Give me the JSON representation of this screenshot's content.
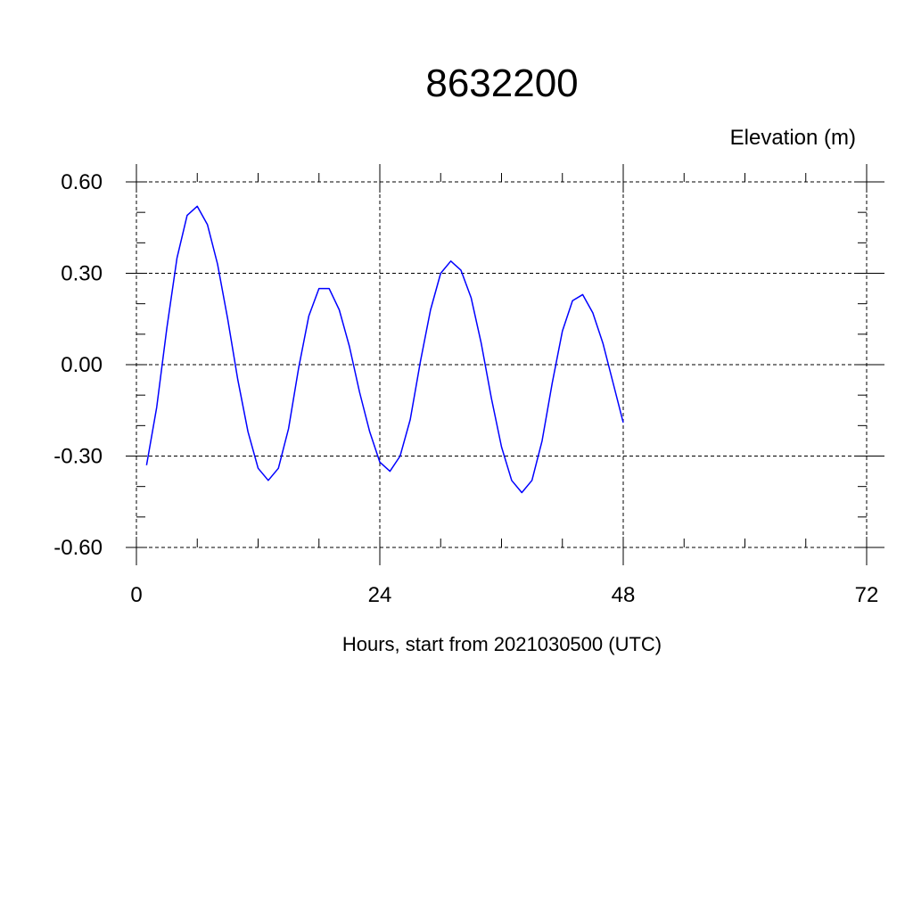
{
  "chart_data": {
    "type": "line",
    "title": "8632200",
    "ylabel": "Elevation (m)",
    "xlabel": "Hours, start from 2021030500 (UTC)",
    "xlim": [
      0,
      72
    ],
    "ylim": [
      -0.6,
      0.6
    ],
    "x_ticks": [
      0,
      24,
      48,
      72
    ],
    "x_tick_labels": [
      "0",
      "24",
      "48",
      "72"
    ],
    "y_ticks": [
      0.6,
      0.3,
      0.0,
      -0.3,
      -0.6
    ],
    "y_tick_labels": [
      "0.60",
      "0.30",
      "0.00",
      "-0.30",
      "-0.60"
    ],
    "grid": true,
    "series": [
      {
        "color": "#0000ff",
        "x": [
          1,
          2,
          3,
          4,
          5,
          6,
          7,
          8,
          9,
          10,
          11,
          12,
          13,
          14,
          15,
          16,
          17,
          18,
          19,
          20,
          21,
          22,
          23,
          24,
          25,
          26,
          27,
          28,
          29,
          30,
          31,
          32,
          33,
          34,
          35,
          36,
          37,
          38,
          39,
          40,
          41,
          42,
          43,
          44,
          45,
          46,
          47,
          48
        ],
        "y": [
          -0.33,
          -0.14,
          0.12,
          0.35,
          0.49,
          0.52,
          0.46,
          0.33,
          0.15,
          -0.05,
          -0.22,
          -0.34,
          -0.38,
          -0.34,
          -0.21,
          -0.01,
          0.16,
          0.25,
          0.25,
          0.18,
          0.06,
          -0.09,
          -0.22,
          -0.32,
          -0.35,
          -0.3,
          -0.18,
          0.01,
          0.18,
          0.3,
          0.34,
          0.31,
          0.22,
          0.07,
          -0.11,
          -0.27,
          -0.38,
          -0.42,
          -0.38,
          -0.25,
          -0.06,
          0.11,
          0.21,
          0.23,
          0.17,
          0.07,
          -0.06,
          -0.19
        ]
      }
    ]
  }
}
